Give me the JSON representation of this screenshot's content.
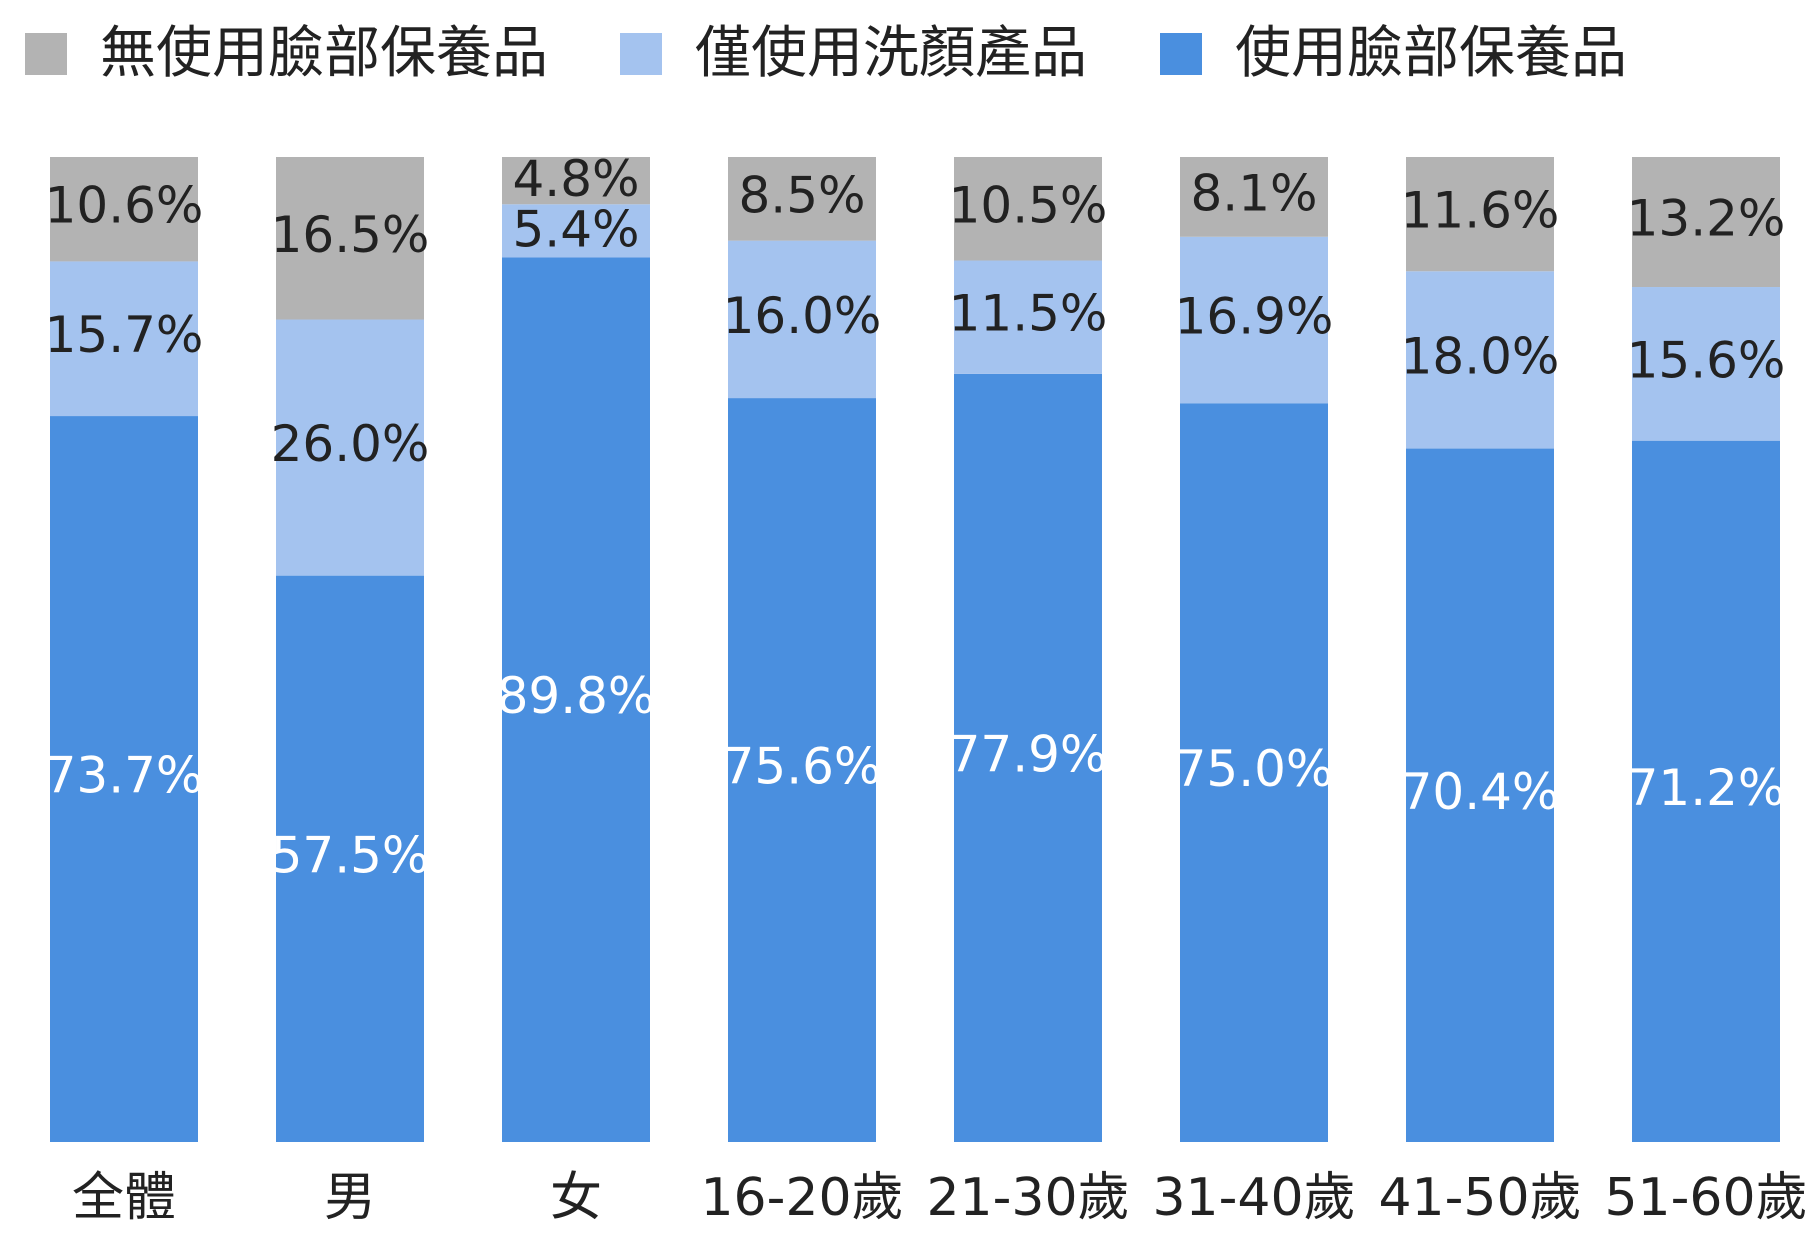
{
  "chart_data": {
    "type": "bar",
    "stacked": true,
    "percent_stacked": true,
    "categories": [
      "全體",
      "男",
      "女",
      "16-20歲",
      "21-30歲",
      "31-40歲",
      "41-50歲",
      "51-60歲"
    ],
    "series": [
      {
        "name": "使用臉部保養品",
        "color": "#4a8fdf",
        "label_color": "#ffffff",
        "values": [
          73.7,
          57.5,
          89.8,
          75.6,
          77.9,
          75.0,
          70.4,
          71.2
        ],
        "labels": [
          "73.7%",
          "57.5%",
          "89.8%",
          "75.6%",
          "77.9%",
          "75.0%",
          "70.4%",
          "71.2%"
        ]
      },
      {
        "name": "僅使用洗顏產品",
        "color": "#a4c3ef",
        "label_color": "#222222",
        "values": [
          15.7,
          26.0,
          5.4,
          16.0,
          11.5,
          16.9,
          18.0,
          15.6
        ],
        "labels": [
          "15.7%",
          "26.0%",
          "5.4%",
          "16.0%",
          "11.5%",
          "16.9%",
          "18.0%",
          "15.6%"
        ]
      },
      {
        "name": "無使用臉部保養品",
        "color": "#b3b3b3",
        "label_color": "#222222",
        "values": [
          10.6,
          16.5,
          4.8,
          8.5,
          10.5,
          8.1,
          11.6,
          13.2
        ],
        "labels": [
          "10.6%",
          "16.5%",
          "4.8%",
          "8.5%",
          "10.5%",
          "8.1%",
          "11.6%",
          "13.2%"
        ]
      }
    ],
    "legend": {
      "position": "top",
      "order": [
        "無使用臉部保養品",
        "僅使用洗顏產品",
        "使用臉部保養品"
      ]
    },
    "ylim": [
      0,
      100
    ],
    "grid": false
  }
}
